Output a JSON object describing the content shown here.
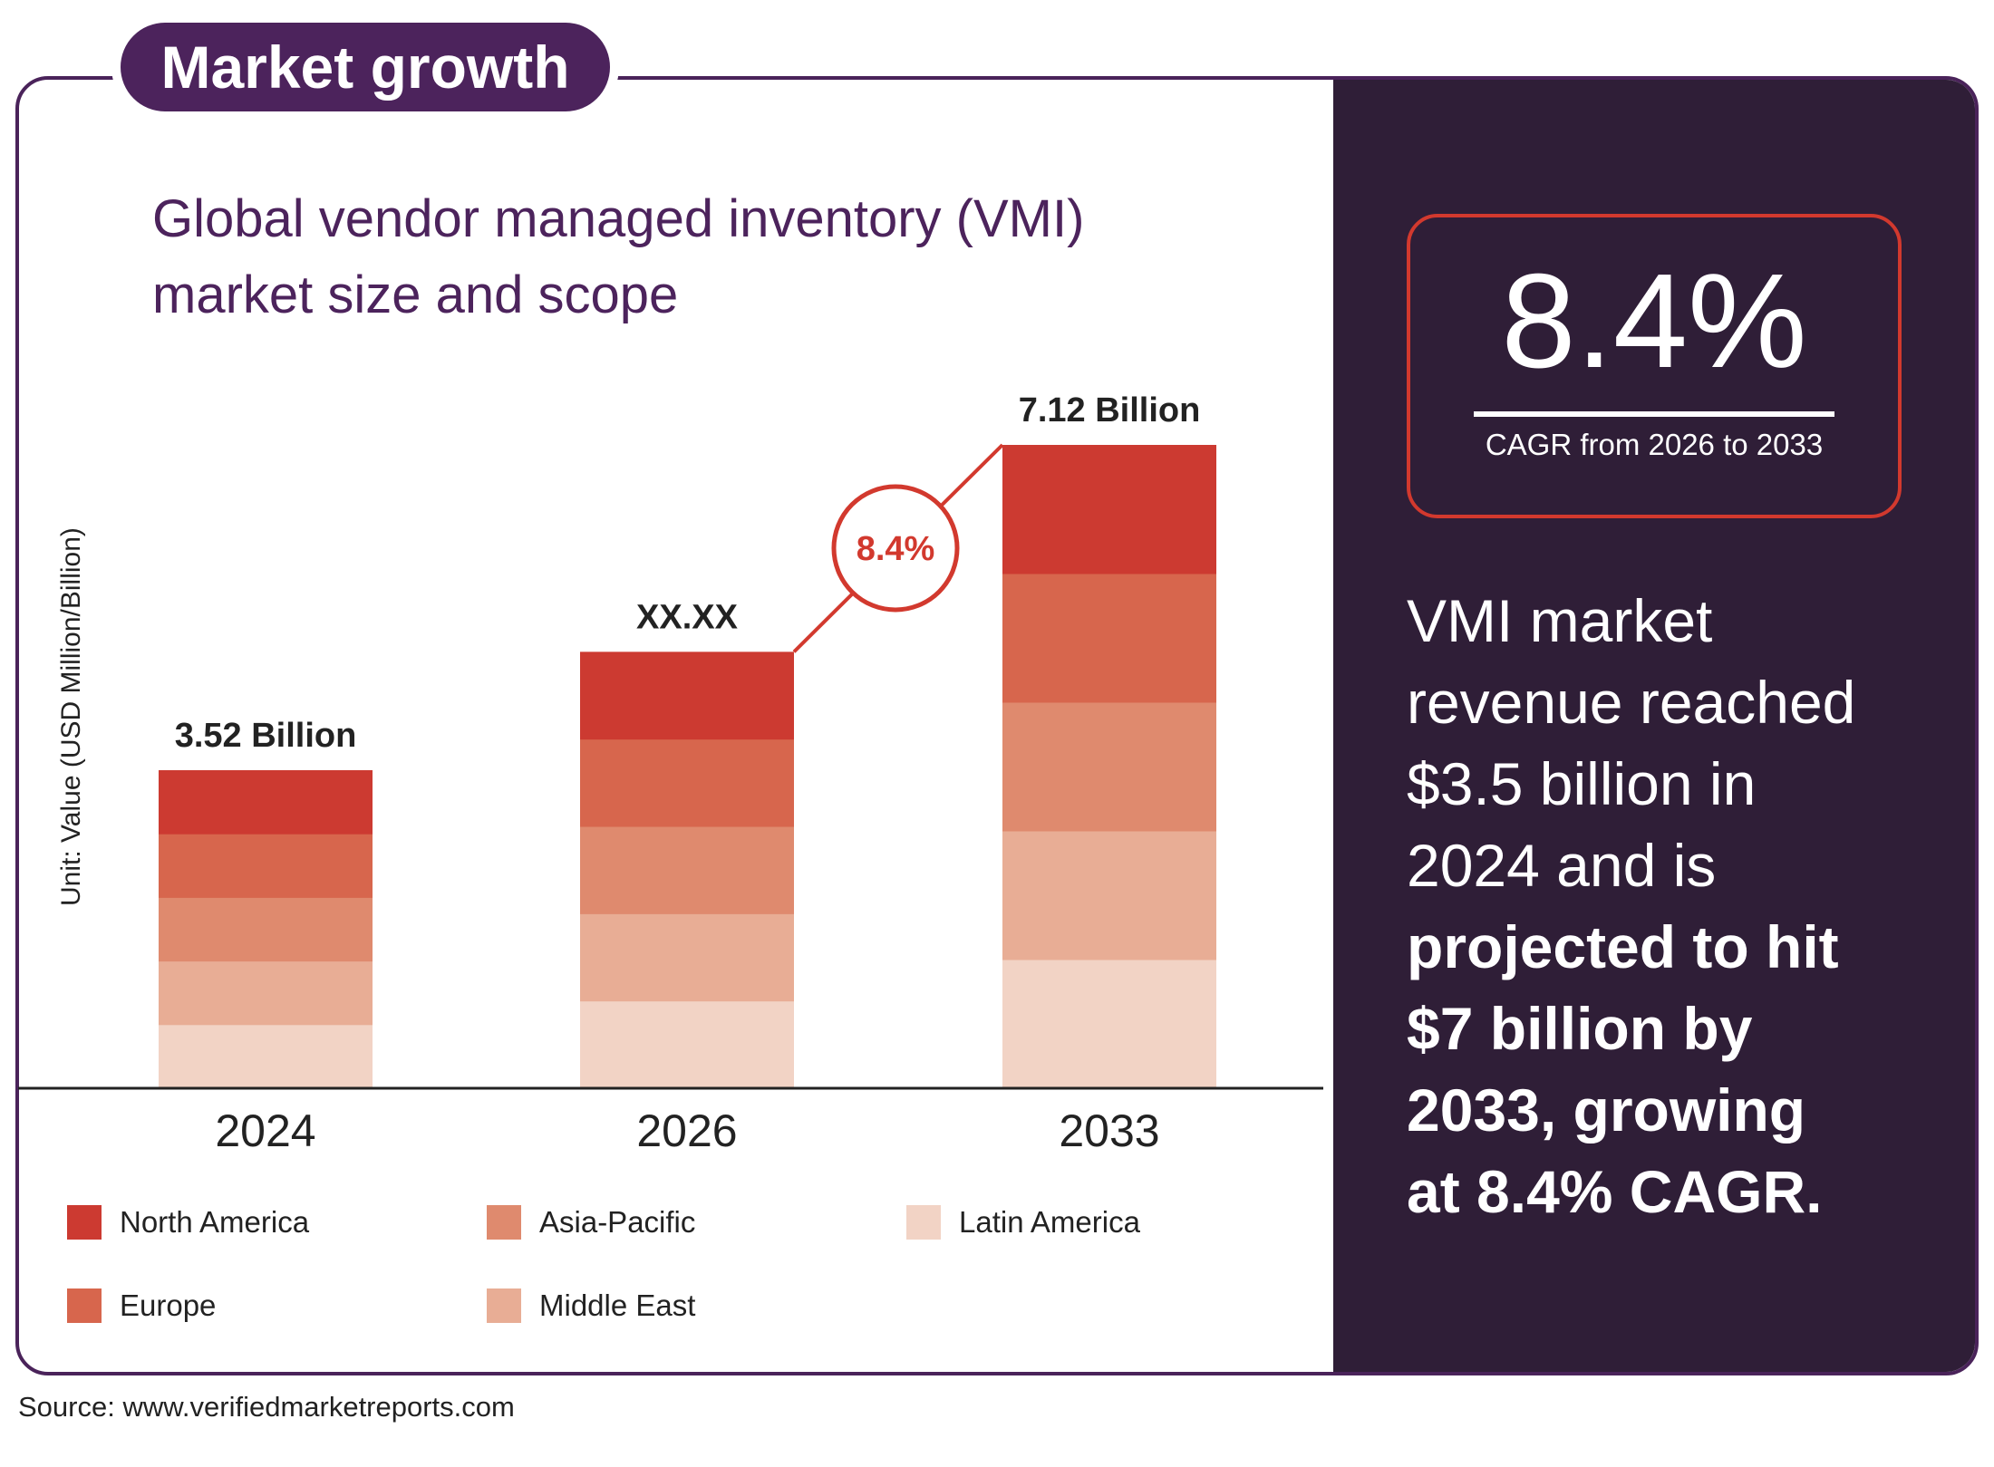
{
  "header": {
    "badge": "Market growth"
  },
  "title": {
    "line1": "Global vendor managed inventory (VMI)",
    "line2": "market size and scope"
  },
  "y_axis_label": "Unit: Value (USD Million/Billion)",
  "cagr_badge": "8.4%",
  "cagr_box": {
    "value": "8.4%",
    "caption": "CAGR from 2026 to 2033"
  },
  "summary": {
    "normal": [
      "VMI market",
      "revenue reached",
      "$3.5 billion in",
      "2024 and is"
    ],
    "bold": [
      "projected to hit",
      "$7 billion by",
      "2033, growing",
      "at 8.4% CAGR."
    ]
  },
  "source": "Source: www.verifiedmarketreports.com",
  "colors": {
    "frame": "#4c235c",
    "panel": "#2f1e37",
    "accent_red": "#d2392e",
    "north_america": "#cc3a31",
    "europe": "#d7664d",
    "asia_pacific": "#df8a6e",
    "middle_east": "#e8ad95",
    "latin_america": "#f2d3c5"
  },
  "chart_data": {
    "type": "bar",
    "stacked": true,
    "title": "Global vendor managed inventory (VMI) market size and scope",
    "xlabel": "",
    "ylabel": "Unit: Value (USD Million/Billion)",
    "categories": [
      "2024",
      "2026",
      "2033"
    ],
    "totals": [
      3.52,
      4.83,
      7.12
    ],
    "total_labels": [
      "3.52 Billion",
      "XX.XX",
      "7.12 Billion"
    ],
    "series": [
      {
        "name": "North America",
        "color": "#cc3a31",
        "values": [
          0.704,
          0.966,
          1.424
        ]
      },
      {
        "name": "Europe",
        "color": "#d7664d",
        "values": [
          0.704,
          0.966,
          1.424
        ]
      },
      {
        "name": "Asia-Pacific",
        "color": "#df8a6e",
        "values": [
          0.704,
          0.966,
          1.424
        ]
      },
      {
        "name": "Middle East",
        "color": "#e8ad95",
        "values": [
          0.704,
          0.966,
          1.424
        ]
      },
      {
        "name": "Latin America",
        "color": "#f2d3c5",
        "values": [
          0.704,
          0.966,
          1.424
        ]
      }
    ],
    "annotation": {
      "text": "8.4%",
      "from": "2026",
      "to": "2033"
    },
    "ylim": [
      0,
      7.12
    ],
    "grid": false,
    "legend_position": "bottom"
  }
}
